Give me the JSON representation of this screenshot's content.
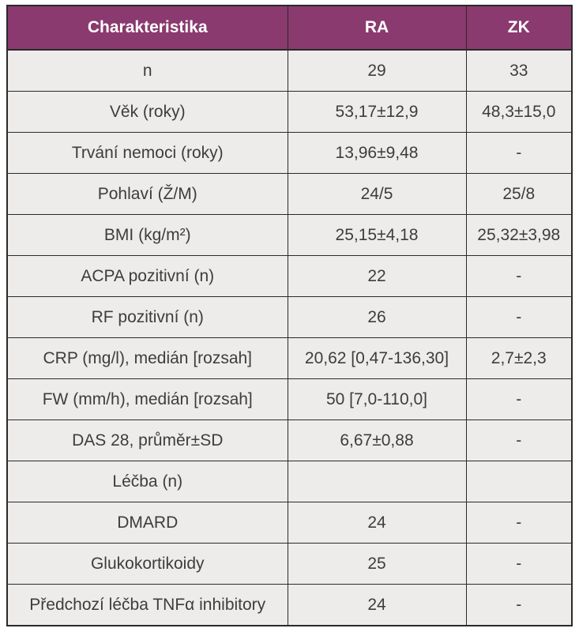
{
  "table": {
    "headers": [
      "Charakteristika",
      "RA",
      "ZK"
    ],
    "rows": [
      [
        "n",
        "29",
        "33"
      ],
      [
        "Věk (roky)",
        "53,17±12,9",
        "48,3±15,0"
      ],
      [
        "Trvání nemoci (roky)",
        "13,96±9,48",
        "-"
      ],
      [
        "Pohlaví (Ž/M)",
        "24/5",
        "25/8"
      ],
      [
        "BMI (kg/m²)",
        "25,15±4,18",
        "25,32±3,98"
      ],
      [
        "ACPA pozitivní (n)",
        "22",
        "-"
      ],
      [
        "RF pozitivní (n)",
        "26",
        "-"
      ],
      [
        "CRP (mg/l), medián [rozsah]",
        "20,62 [0,47-136,30]",
        "2,7±2,3"
      ],
      [
        "FW (mm/h), medián [rozsah]",
        "50 [7,0-110,0]",
        "-"
      ],
      [
        "DAS 28, průměr±SD",
        "6,67±0,88",
        "-"
      ],
      [
        "Léčba (n)",
        "",
        ""
      ],
      [
        "DMARD",
        "24",
        "-"
      ],
      [
        "Glukokortikoidy",
        "25",
        "-"
      ],
      [
        "Předchozí léčba TNFα inhibitory",
        "24",
        "-"
      ]
    ]
  },
  "colors": {
    "header_bg": "#8a3a6e",
    "header_text": "#ffffff",
    "cell_bg": "#eeebeb",
    "cell_text": "#3d3d3d"
  }
}
